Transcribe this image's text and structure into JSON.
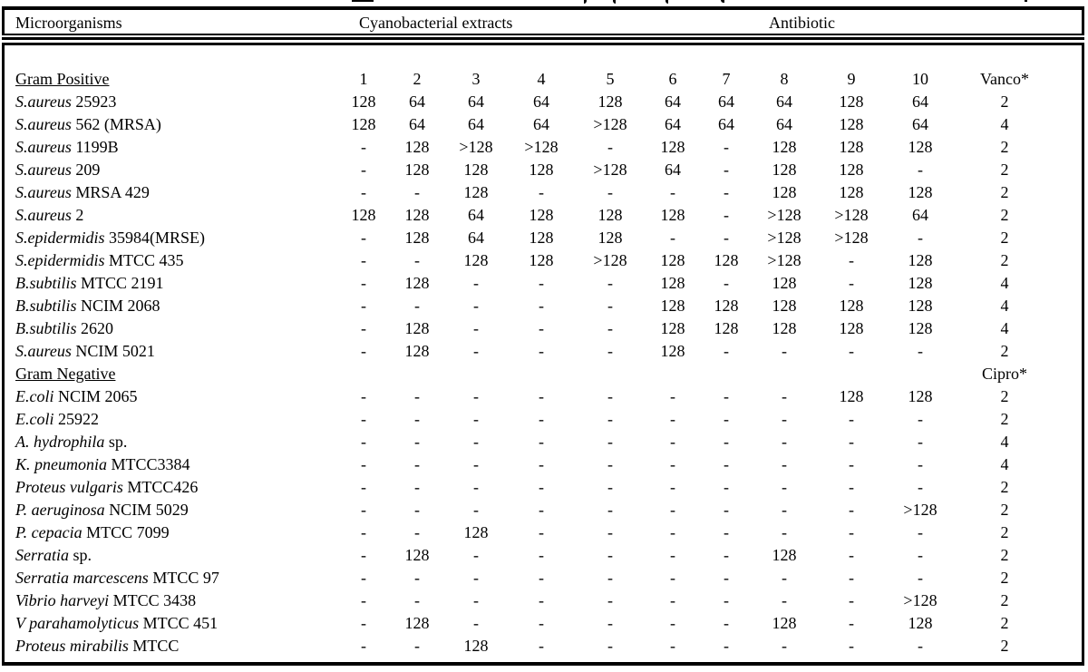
{
  "table": {
    "header": {
      "microorganisms": "Microorganisms",
      "extracts": "Cyanobacterial extracts",
      "antibiotic": "Antibiotic"
    },
    "extract_columns": [
      "1",
      "2",
      "3",
      "4",
      "5",
      "6",
      "7",
      "8",
      "9",
      "10"
    ],
    "sections": [
      {
        "label": "Gram Positive",
        "antibiotic_header": "Vanco*",
        "show_columns": true,
        "rows": [
          {
            "italic": "S.aureus",
            "rest": "25923",
            "values": [
              "128",
              "64",
              "64",
              "64",
              "128",
              "64",
              "64",
              "64",
              "128",
              "64"
            ],
            "antibiotic": "2"
          },
          {
            "italic": "S.aureus",
            "rest": "562 (MRSA)",
            "values": [
              "128",
              "64",
              "64",
              "64",
              ">128",
              "64",
              "64",
              "64",
              "128",
              "64"
            ],
            "antibiotic": "4"
          },
          {
            "italic": "S.aureus",
            "rest": "1199B",
            "values": [
              "-",
              "128",
              ">128",
              ">128",
              "-",
              "128",
              "-",
              "128",
              "128",
              "128"
            ],
            "antibiotic": "2"
          },
          {
            "italic": "S.aureus",
            "rest": "209",
            "values": [
              "-",
              "128",
              "128",
              "128",
              ">128",
              "64",
              "-",
              "128",
              "128",
              "-"
            ],
            "antibiotic": "2"
          },
          {
            "italic": "S.aureus",
            "rest": "MRSA 429",
            "values": [
              "-",
              "-",
              "128",
              "-",
              "-",
              "-",
              "-",
              "128",
              "128",
              "128"
            ],
            "antibiotic": "2"
          },
          {
            "italic": "S.aureus",
            "rest": "2",
            "values": [
              "128",
              "128",
              "64",
              "128",
              "128",
              "128",
              "-",
              ">128",
              ">128",
              "64"
            ],
            "antibiotic": "2"
          },
          {
            "italic": "S.epidermidis",
            "rest": "35984(MRSE)",
            "values": [
              "-",
              "128",
              "64",
              "128",
              "128",
              "-",
              "-",
              ">128",
              ">128",
              "-"
            ],
            "antibiotic": "2"
          },
          {
            "italic": "S.epidermidis",
            "rest": "MTCC 435",
            "values": [
              "-",
              "-",
              "128",
              "128",
              ">128",
              "128",
              "128",
              ">128",
              "-",
              "128"
            ],
            "antibiotic": "2"
          },
          {
            "italic": "B.subtilis",
            "rest": "MTCC 2191",
            "values": [
              "-",
              "128",
              "-",
              "-",
              "-",
              "128",
              "-",
              "128",
              "-",
              "128"
            ],
            "antibiotic": "4"
          },
          {
            "italic": "B.subtilis",
            "rest": "NCIM 2068",
            "values": [
              "-",
              "-",
              "-",
              "-",
              "-",
              "128",
              "128",
              "128",
              "128",
              "128"
            ],
            "antibiotic": "4"
          },
          {
            "italic": "B.subtilis",
            "rest": "2620",
            "values": [
              "-",
              "128",
              "-",
              "-",
              "-",
              "128",
              "128",
              "128",
              "128",
              "128"
            ],
            "antibiotic": "4"
          },
          {
            "italic": "S.aureus",
            "rest": "NCIM 5021",
            "values": [
              "-",
              "128",
              "-",
              "-",
              "-",
              "128",
              "-",
              "-",
              "-",
              "-"
            ],
            "antibiotic": "2"
          }
        ]
      },
      {
        "label": "Gram Negative",
        "antibiotic_header": "Cipro*",
        "show_columns": false,
        "rows": [
          {
            "italic": "E.coli",
            "rest": "NCIM 2065",
            "values": [
              "-",
              "-",
              "-",
              "-",
              "-",
              "-",
              "-",
              "-",
              "128",
              "128"
            ],
            "antibiotic": "2"
          },
          {
            "italic": "E.coli",
            "rest": "25922",
            "values": [
              "-",
              "-",
              "-",
              "-",
              "-",
              "-",
              "-",
              "-",
              "-",
              "-"
            ],
            "antibiotic": "2"
          },
          {
            "italic": "A. hydrophila",
            "rest": "sp.",
            "values": [
              "-",
              "-",
              "-",
              "-",
              "-",
              "-",
              "-",
              "-",
              "-",
              "-"
            ],
            "antibiotic": "4"
          },
          {
            "italic": "K. pneumonia",
            "rest": "MTCC3384",
            "values": [
              "-",
              "-",
              "-",
              "-",
              "-",
              "-",
              "-",
              "-",
              "-",
              "-"
            ],
            "antibiotic": "4"
          },
          {
            "italic": "Proteus vulgaris",
            "rest": "MTCC426",
            "values": [
              "-",
              "-",
              "-",
              "-",
              "-",
              "-",
              "-",
              "-",
              "-",
              "-"
            ],
            "antibiotic": "2"
          },
          {
            "italic": "P. aeruginosa",
            "rest": "NCIM 5029",
            "values": [
              "-",
              "-",
              "-",
              "-",
              "-",
              "-",
              "-",
              "-",
              "-",
              ">128"
            ],
            "antibiotic": "2"
          },
          {
            "italic": "P. cepacia",
            "rest": "MTCC 7099",
            "values": [
              "-",
              "-",
              "128",
              "-",
              "-",
              "-",
              "-",
              "-",
              "-",
              "-"
            ],
            "antibiotic": "2"
          },
          {
            "italic": "Serratia",
            "rest": "sp.",
            "values": [
              "-",
              "128",
              "-",
              "-",
              "-",
              "-",
              "-",
              "128",
              "-",
              "-"
            ],
            "antibiotic": "2"
          },
          {
            "italic": "Serratia marcescens",
            "rest": "MTCC 97",
            "values": [
              "-",
              "-",
              "-",
              "-",
              "-",
              "-",
              "-",
              "-",
              "-",
              "-"
            ],
            "antibiotic": "2"
          },
          {
            "italic": "Vibrio harveyi",
            "rest": "MTCC 3438",
            "values": [
              "-",
              "-",
              "-",
              "-",
              "-",
              "-",
              "-",
              "-",
              "-",
              ">128"
            ],
            "antibiotic": "2"
          },
          {
            "italic": "V parahamolyticus",
            "rest": "MTCC 451",
            "values": [
              "-",
              "128",
              "-",
              "-",
              "-",
              "-",
              "-",
              "128",
              "-",
              "128"
            ],
            "antibiotic": "2"
          },
          {
            "italic": "Proteus mirabilis",
            "rest": "MTCC",
            "values": [
              "-",
              "-",
              "128",
              "-",
              "-",
              "-",
              "-",
              "-",
              "-",
              "-"
            ],
            "antibiotic": "2"
          }
        ]
      }
    ]
  }
}
